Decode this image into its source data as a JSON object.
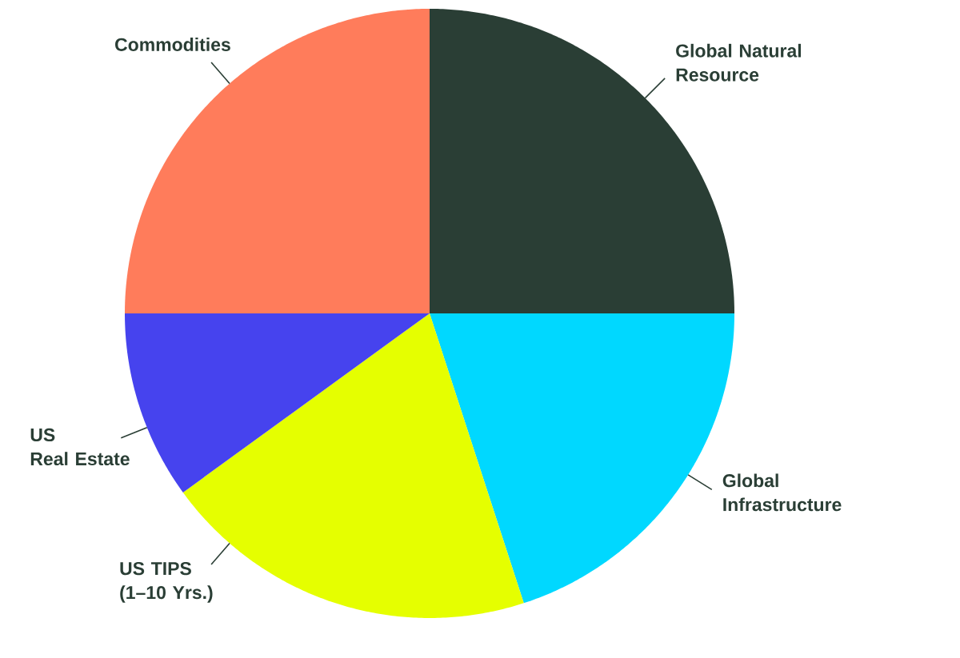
{
  "chart_data": {
    "type": "pie",
    "categories": [
      "Global Natural Resource",
      "Global Infrastructure",
      "US TIPS (1–10 Yrs.)",
      "US Real Estate",
      "Commodities"
    ],
    "values": [
      25,
      20,
      20,
      10,
      25
    ],
    "colors": [
      "#2a3e35",
      "#00d8ff",
      "#e5ff00",
      "#4643ee",
      "#ff7c5b"
    ]
  }
}
